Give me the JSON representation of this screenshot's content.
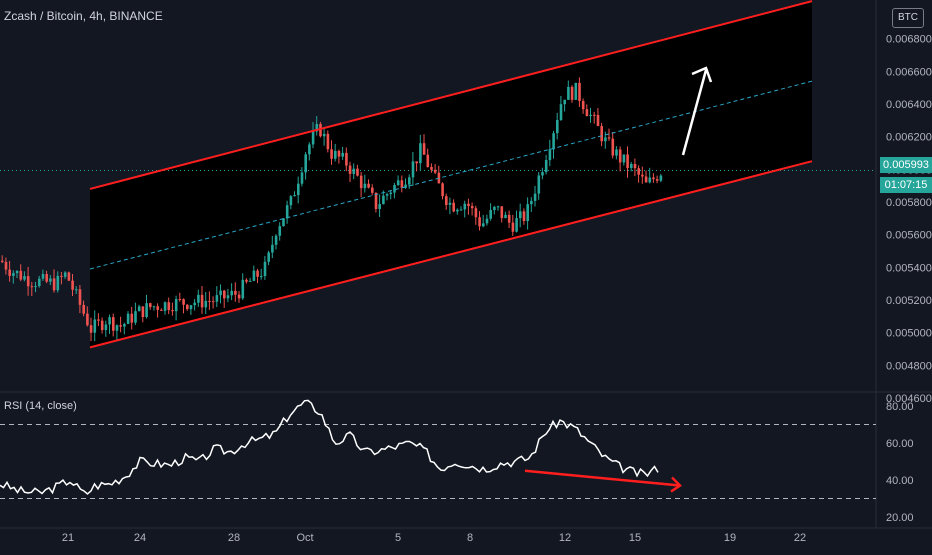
{
  "title": "Zcash / Bitcoin, 4h, BINANCE",
  "currency_badge": "BTC",
  "rsi_label": "RSI (14, close)",
  "last_price": "0.005993",
  "countdown": "01:07:15",
  "colors": {
    "background": "#131722",
    "up": "#26a69a",
    "down": "#ef5350",
    "channel": "#ff1e1e",
    "midline": "#2aa6c7",
    "rsi": "#ffffff",
    "arrow": "#ffffff"
  },
  "chart_data": [
    {
      "type": "candlestick",
      "symbol": "Zcash / Bitcoin",
      "timeframe": "4h",
      "exchange": "BINANCE",
      "ylim": [
        0.0046,
        0.007
      ],
      "y_ticks": [
        "0.004600",
        "0.004800",
        "0.005000",
        "0.005200",
        "0.005400",
        "0.005600",
        "0.005800",
        "0.006000",
        "0.006200",
        "0.006400",
        "0.006600",
        "0.006800"
      ],
      "x_ticks": [
        "21",
        "24",
        "28",
        "Oct",
        "5",
        "8",
        "12",
        "15",
        "19",
        "22"
      ],
      "close_path": [
        [
          0,
          0.00544
        ],
        [
          10,
          0.00538
        ],
        [
          30,
          0.00532
        ],
        [
          55,
          0.0053
        ],
        [
          65,
          0.00536
        ],
        [
          75,
          0.00522
        ],
        [
          90,
          0.00502
        ],
        [
          105,
          0.00508
        ],
        [
          120,
          0.00504
        ],
        [
          135,
          0.00512
        ],
        [
          150,
          0.00516
        ],
        [
          170,
          0.00518
        ],
        [
          195,
          0.00519
        ],
        [
          215,
          0.0052
        ],
        [
          235,
          0.00524
        ],
        [
          250,
          0.00532
        ],
        [
          265,
          0.0054
        ],
        [
          275,
          0.00564
        ],
        [
          290,
          0.0058
        ],
        [
          305,
          0.00612
        ],
        [
          318,
          0.00626
        ],
        [
          330,
          0.0061
        ],
        [
          345,
          0.00604
        ],
        [
          360,
          0.00592
        ],
        [
          375,
          0.00578
        ],
        [
          390,
          0.00588
        ],
        [
          405,
          0.00596
        ],
        [
          420,
          0.00612
        ],
        [
          435,
          0.00592
        ],
        [
          450,
          0.00578
        ],
        [
          465,
          0.0058
        ],
        [
          480,
          0.00566
        ],
        [
          495,
          0.00576
        ],
        [
          510,
          0.00566
        ],
        [
          525,
          0.00572
        ],
        [
          540,
          0.006
        ],
        [
          552,
          0.00624
        ],
        [
          562,
          0.00646
        ],
        [
          575,
          0.00648
        ],
        [
          590,
          0.00632
        ],
        [
          605,
          0.00616
        ],
        [
          620,
          0.00606
        ],
        [
          635,
          0.00598
        ],
        [
          645,
          0.0059
        ],
        [
          660,
          0.00599
        ]
      ],
      "channel": {
        "upper": [
          [
            90,
            0.00588
          ],
          [
            812,
            0.00703
          ]
        ],
        "lower": [
          [
            90,
            0.00491
          ],
          [
            812,
            0.00605
          ]
        ],
        "mid": [
          [
            90,
            0.00539
          ],
          [
            812,
            0.00654
          ]
        ]
      },
      "annotations": [
        "up-arrow"
      ]
    },
    {
      "type": "line",
      "name": "RSI (14, close)",
      "ylim": [
        20,
        85
      ],
      "y_ticks": [
        "20.00",
        "40.00",
        "60.00",
        "80.00"
      ],
      "levels": [
        30,
        70
      ],
      "values_path": [
        [
          0,
          38
        ],
        [
          20,
          34
        ],
        [
          40,
          33
        ],
        [
          55,
          36
        ],
        [
          70,
          40
        ],
        [
          85,
          32
        ],
        [
          95,
          37
        ],
        [
          110,
          38
        ],
        [
          125,
          42
        ],
        [
          140,
          50
        ],
        [
          155,
          49
        ],
        [
          170,
          48
        ],
        [
          185,
          52
        ],
        [
          200,
          50
        ],
        [
          215,
          57
        ],
        [
          230,
          55
        ],
        [
          245,
          60
        ],
        [
          260,
          62
        ],
        [
          275,
          65
        ],
        [
          290,
          76
        ],
        [
          305,
          82
        ],
        [
          320,
          77
        ],
        [
          335,
          60
        ],
        [
          350,
          64
        ],
        [
          365,
          55
        ],
        [
          380,
          56
        ],
        [
          395,
          58
        ],
        [
          410,
          60
        ],
        [
          425,
          56
        ],
        [
          440,
          46
        ],
        [
          455,
          50
        ],
        [
          470,
          48
        ],
        [
          485,
          46
        ],
        [
          500,
          49
        ],
        [
          515,
          50
        ],
        [
          530,
          52
        ],
        [
          545,
          66
        ],
        [
          560,
          72
        ],
        [
          575,
          68
        ],
        [
          590,
          60
        ],
        [
          605,
          52
        ],
        [
          620,
          47
        ],
        [
          635,
          44
        ],
        [
          645,
          43
        ],
        [
          660,
          47
        ]
      ],
      "divergence_line": [
        [
          525,
          45
        ],
        [
          680,
          37
        ]
      ]
    }
  ]
}
